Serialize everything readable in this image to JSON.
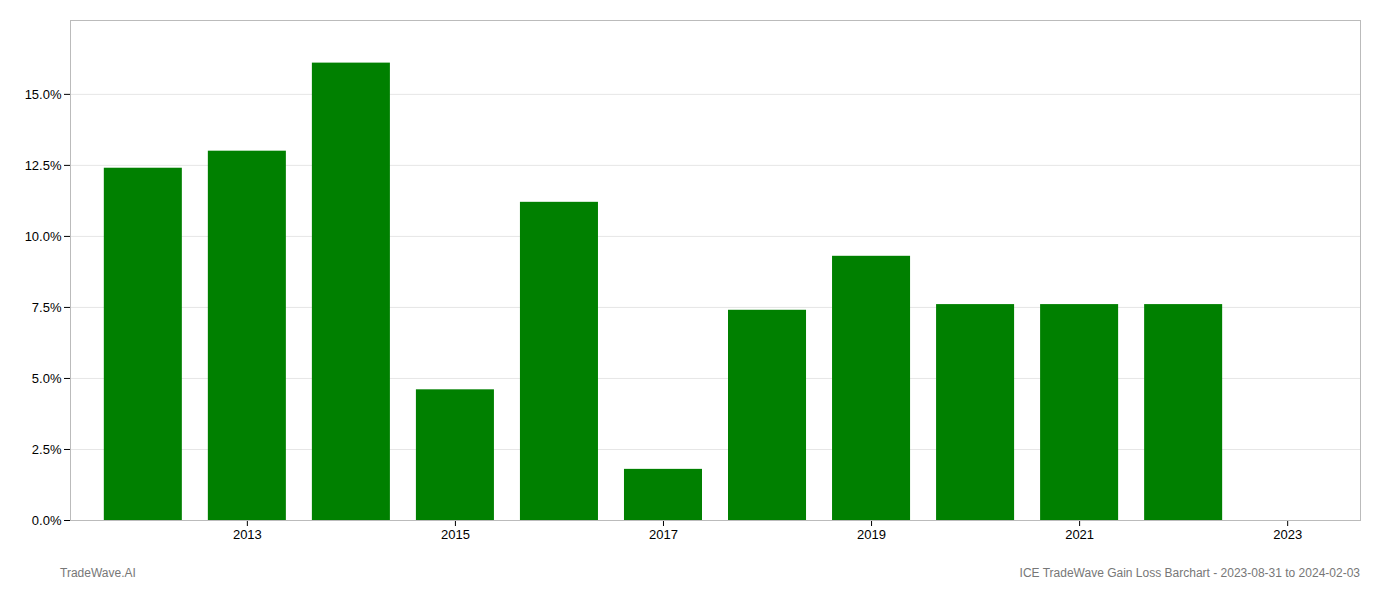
{
  "chart_data": {
    "type": "bar",
    "x": [
      2012,
      2013,
      2014,
      2015,
      2016,
      2017,
      2018,
      2019,
      2020,
      2021,
      2022
    ],
    "values": [
      0.124,
      0.13,
      0.161,
      0.046,
      0.112,
      0.018,
      0.074,
      0.093,
      0.076,
      0.076,
      0.076
    ],
    "color": "#008000",
    "xlim": [
      2011.3,
      2023.7
    ],
    "xticks": [
      2013,
      2015,
      2017,
      2019,
      2021,
      2023
    ],
    "ylim": [
      0,
      0.176
    ],
    "yticks": [
      {
        "value": 0.0,
        "label": "0.0%"
      },
      {
        "value": 0.025,
        "label": "2.5%"
      },
      {
        "value": 0.05,
        "label": "5.0%"
      },
      {
        "value": 0.075,
        "label": "7.5%"
      },
      {
        "value": 0.1,
        "label": "10.0%"
      },
      {
        "value": 0.125,
        "label": "12.5%"
      },
      {
        "value": 0.15,
        "label": "15.0%"
      }
    ],
    "grid": true,
    "annotations": [
      "TradeWave.AI",
      "ICE TradeWave Gain Loss Barchart - 2023-08-31 to 2024-02-03"
    ]
  }
}
